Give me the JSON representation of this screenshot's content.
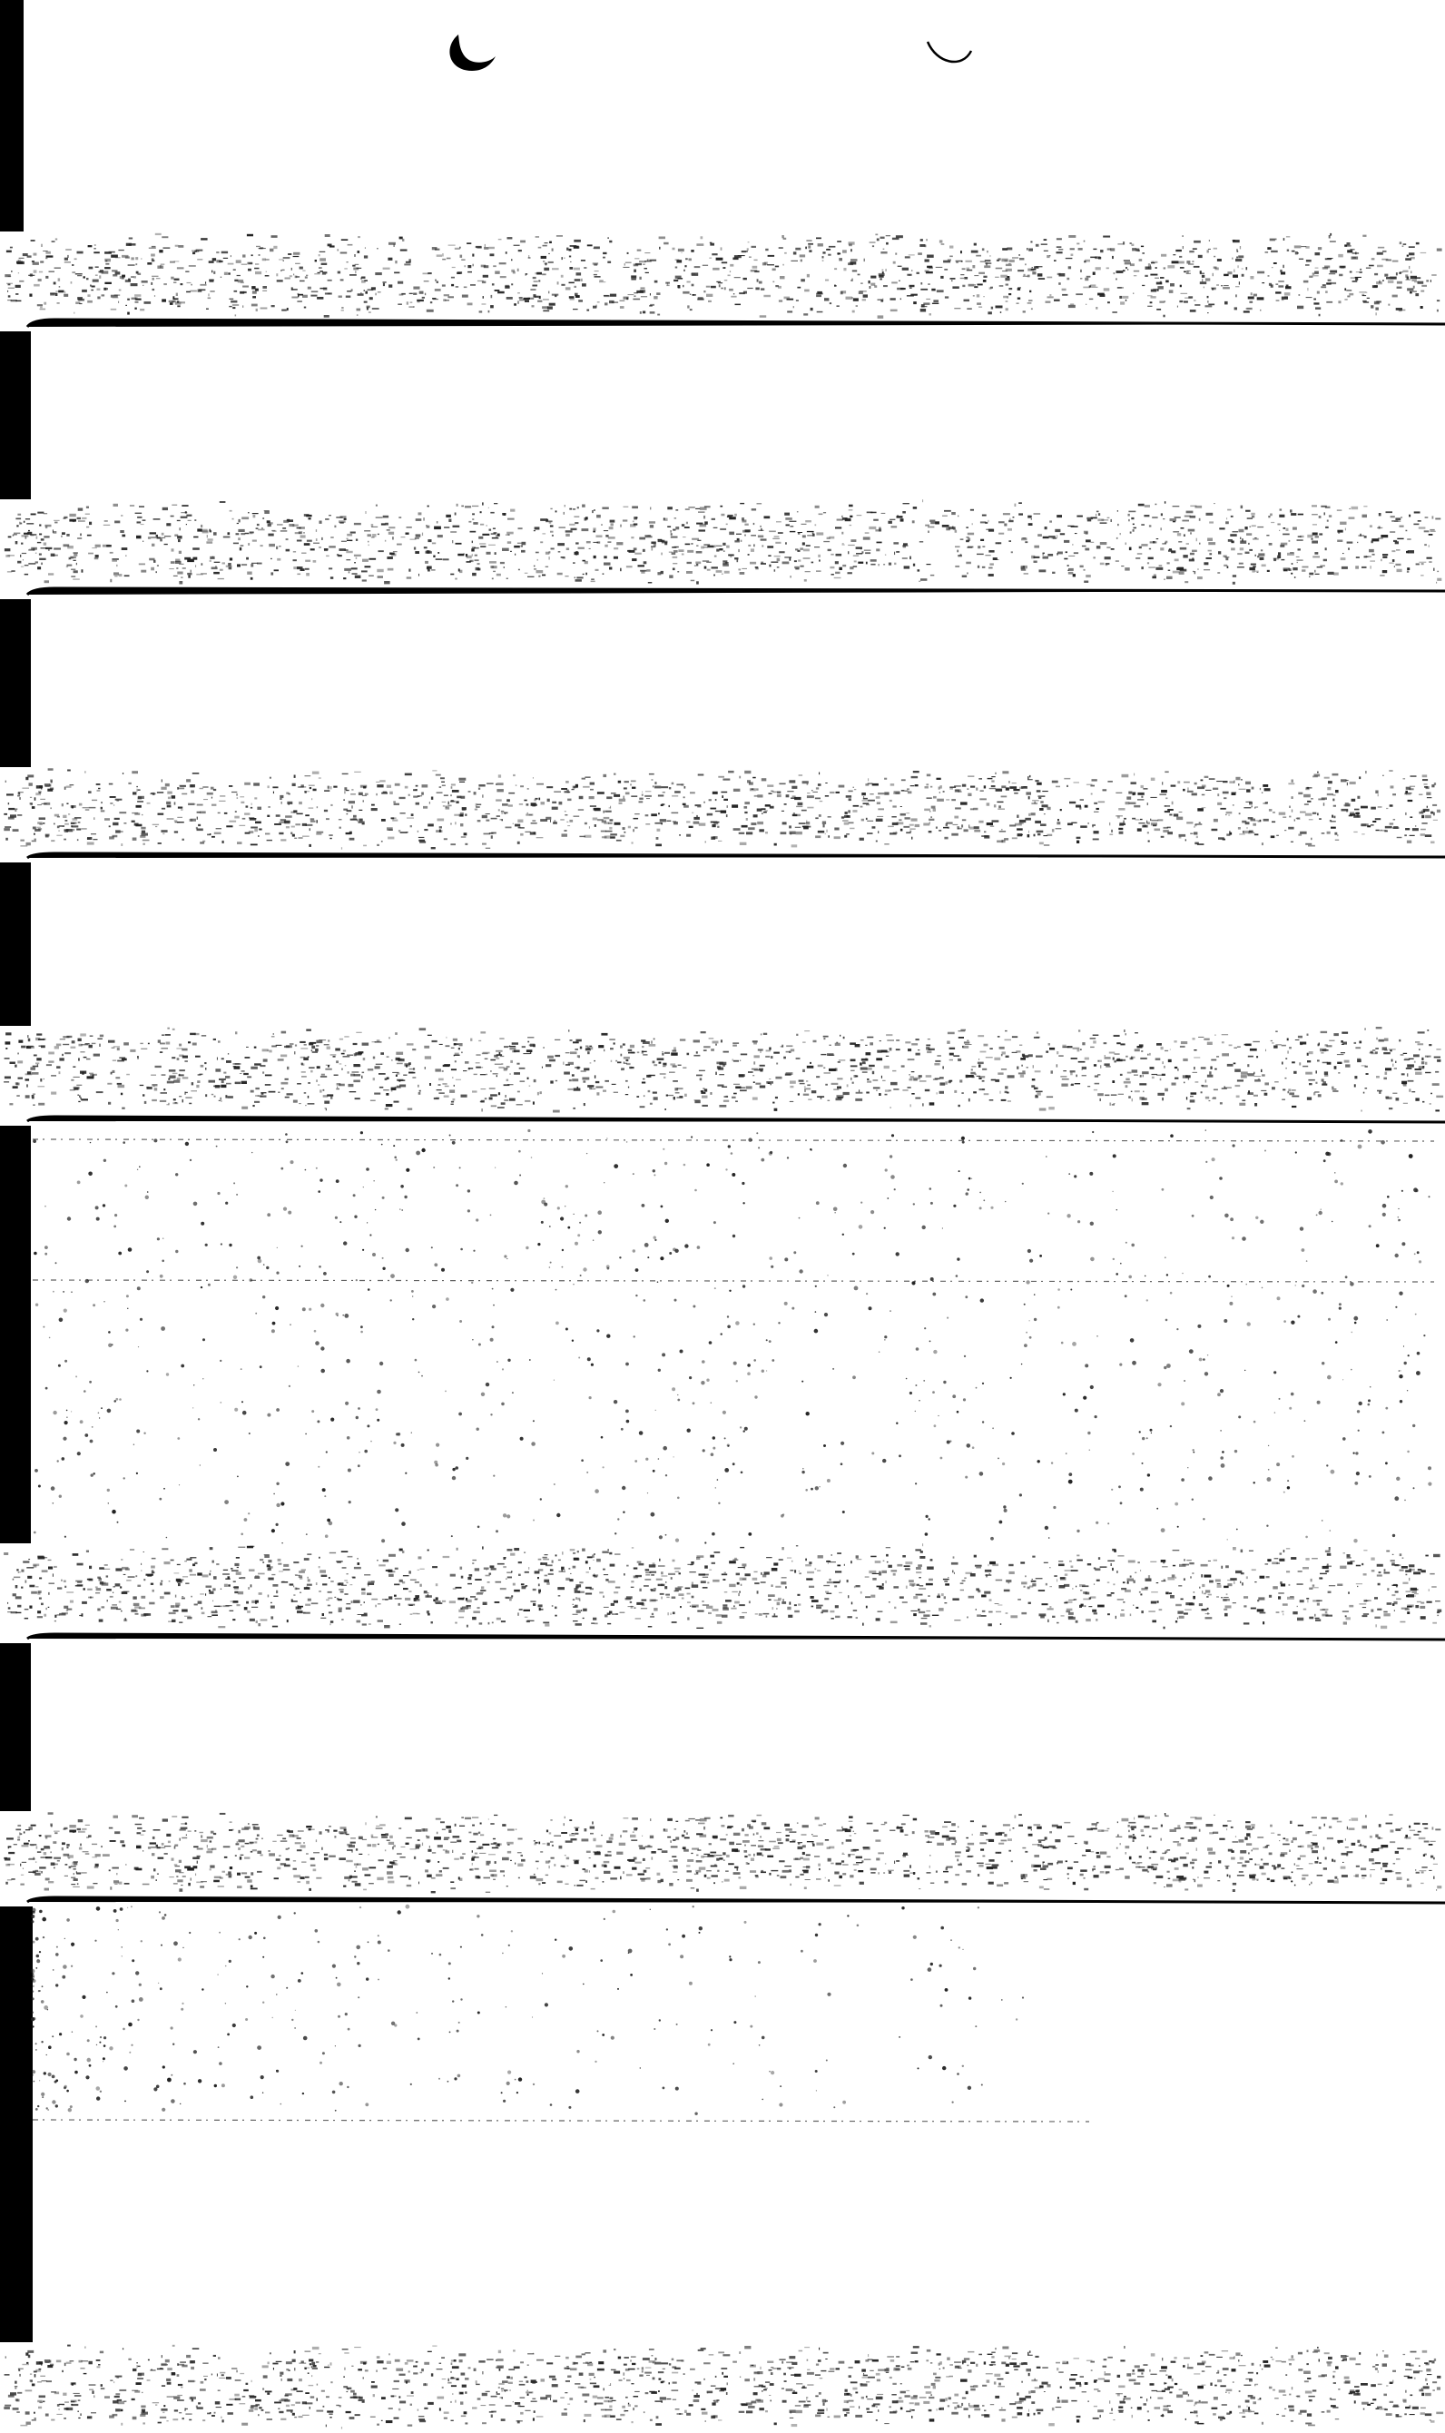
{
  "scan": {
    "background_color": "#ffffff",
    "ink_color": "#000000",
    "noise_color": "#222222",
    "band_count": 7
  },
  "marks": [
    {
      "shape": "crescent",
      "name": "hole-punch-mark-left"
    },
    {
      "shape": "arc",
      "name": "hole-punch-mark-right"
    }
  ]
}
